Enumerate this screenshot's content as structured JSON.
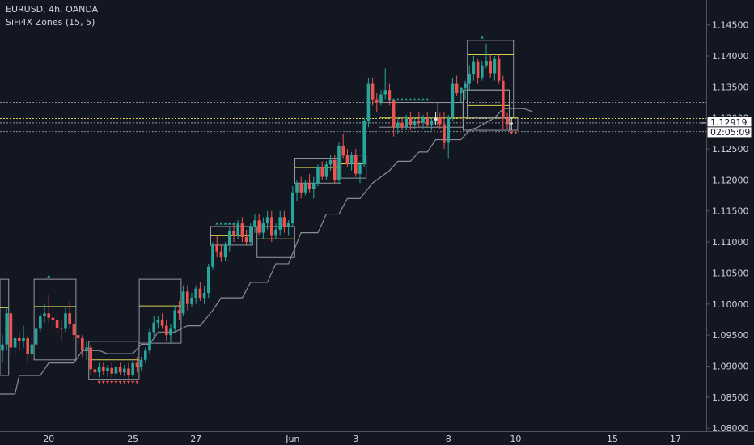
{
  "header": {
    "symbol_line": "EURUSD, 4h, OANDA",
    "indicator_line": "SiFi4X Zones (15, 5)"
  },
  "colors": {
    "background": "#131722",
    "up_candle": "#26a69a",
    "down_candle": "#ef5350",
    "doji_candle": "#e9eaec",
    "zone_box": "#9598a1",
    "mid_line": "#d4d050",
    "trail_line": "#8a8d94",
    "grid_dotted": "#8a8d94",
    "text": "#d1d4dc",
    "markers_up": "#26a69a",
    "markers_down": "#ef5350"
  },
  "chart_data": {
    "type": "candlestick",
    "y_axis": {
      "ticks": [
        "1.14500",
        "1.14000",
        "1.13500",
        "1.13000",
        "1.12500",
        "1.12000",
        "1.11500",
        "1.11000",
        "1.10500",
        "1.10000",
        "1.09500",
        "1.09000",
        "1.08500",
        "1.08000"
      ],
      "ylim": [
        1.0795,
        1.149
      ]
    },
    "x_axis": {
      "ticks": [
        {
          "label": "20",
          "bar": 11
        },
        {
          "label": "25",
          "bar": 31
        },
        {
          "label": "27",
          "bar": 46
        },
        {
          "label": "Jun",
          "bar": 69
        },
        {
          "label": "3",
          "bar": 84
        },
        {
          "label": "8",
          "bar": 106
        },
        {
          "label": "10",
          "bar": 122
        },
        {
          "label": "15",
          "bar": 145
        },
        {
          "label": "17",
          "bar": 160
        }
      ]
    },
    "last_price": "1.12919",
    "countdown": "02:05:09",
    "candles": [
      [
        1.0925,
        1.095,
        1.0905,
        1.0935
      ],
      [
        1.0935,
        1.0995,
        1.0925,
        1.0985
      ],
      [
        1.0985,
        1.099,
        1.092,
        1.093
      ],
      [
        1.093,
        1.095,
        1.0915,
        1.0945
      ],
      [
        1.0945,
        1.0955,
        1.0925,
        1.094
      ],
      [
        1.094,
        1.0965,
        1.093,
        1.0945
      ],
      [
        1.0945,
        1.095,
        1.0905,
        1.092
      ],
      [
        1.092,
        1.0945,
        1.091,
        1.0935
      ],
      [
        1.0935,
        1.097,
        1.093,
        1.096
      ],
      [
        1.096,
        1.0985,
        1.0955,
        1.098
      ],
      [
        1.098,
        1.1,
        1.097,
        1.0985
      ],
      [
        1.0985,
        1.1015,
        1.097,
        1.0978
      ],
      [
        1.0978,
        1.099,
        1.096,
        1.0975
      ],
      [
        1.0975,
        1.0985,
        1.0955,
        1.0962
      ],
      [
        1.0962,
        1.0975,
        1.094,
        1.096
      ],
      [
        1.096,
        1.0995,
        1.0955,
        1.0985
      ],
      [
        1.0985,
        1.1005,
        1.096,
        1.0968
      ],
      [
        1.0968,
        1.0975,
        1.094,
        1.095
      ],
      [
        1.095,
        1.096,
        1.0935,
        1.0945
      ],
      [
        1.0945,
        1.095,
        1.0915,
        1.0925
      ],
      [
        1.0925,
        1.094,
        1.091,
        1.093
      ],
      [
        1.093,
        1.0935,
        1.0885,
        1.0895
      ],
      [
        1.0895,
        1.0905,
        1.088,
        1.089
      ],
      [
        1.089,
        1.0905,
        1.0882,
        1.0898
      ],
      [
        1.0898,
        1.0905,
        1.0885,
        1.0892
      ],
      [
        1.0892,
        1.0902,
        1.0883,
        1.0897
      ],
      [
        1.0897,
        1.0905,
        1.0882,
        1.0888
      ],
      [
        1.0888,
        1.09,
        1.088,
        1.0898
      ],
      [
        1.0898,
        1.0905,
        1.0885,
        1.089
      ],
      [
        1.089,
        1.0902,
        1.0884,
        1.0896
      ],
      [
        1.0896,
        1.0905,
        1.088,
        1.0885
      ],
      [
        1.0885,
        1.091,
        1.0882,
        1.0905
      ],
      [
        1.0905,
        1.0915,
        1.089,
        1.0898
      ],
      [
        1.0898,
        1.0915,
        1.0893,
        1.091
      ],
      [
        1.091,
        1.093,
        1.0905,
        1.0925
      ],
      [
        1.0925,
        1.096,
        1.092,
        1.0955
      ],
      [
        1.0955,
        1.098,
        1.0945,
        1.097
      ],
      [
        1.097,
        1.098,
        1.096,
        1.0975
      ],
      [
        1.0975,
        1.0985,
        1.096,
        1.0965
      ],
      [
        1.0965,
        1.0975,
        1.094,
        1.095
      ],
      [
        1.095,
        1.0968,
        1.0938,
        1.096
      ],
      [
        1.096,
        1.0998,
        1.0955,
        1.099
      ],
      [
        1.099,
        1.1005,
        1.0975,
        1.0985
      ],
      [
        1.0985,
        1.103,
        1.098,
        1.102
      ],
      [
        1.102,
        1.103,
        1.099,
        1.1
      ],
      [
        1.1,
        1.1018,
        1.0995,
        1.101
      ],
      [
        1.101,
        1.103,
        1.1,
        1.1025
      ],
      [
        1.1025,
        1.1035,
        1.1005,
        1.101
      ],
      [
        1.101,
        1.103,
        1.1,
        1.1018
      ],
      [
        1.1018,
        1.1065,
        1.101,
        1.106
      ],
      [
        1.106,
        1.11,
        1.1055,
        1.1095
      ],
      [
        1.1095,
        1.111,
        1.1075,
        1.1085
      ],
      [
        1.1085,
        1.1095,
        1.1068,
        1.1075
      ],
      [
        1.1075,
        1.11,
        1.107,
        1.1095
      ],
      [
        1.1095,
        1.1125,
        1.1085,
        1.1118
      ],
      [
        1.1118,
        1.113,
        1.11,
        1.111
      ],
      [
        1.111,
        1.1135,
        1.1105,
        1.113
      ],
      [
        1.113,
        1.114,
        1.11,
        1.1108
      ],
      [
        1.1108,
        1.112,
        1.1095,
        1.11
      ],
      [
        1.11,
        1.113,
        1.1095,
        1.1125
      ],
      [
        1.1125,
        1.1145,
        1.1115,
        1.1135
      ],
      [
        1.1135,
        1.1145,
        1.111,
        1.1115
      ],
      [
        1.1115,
        1.114,
        1.1105,
        1.113
      ],
      [
        1.113,
        1.115,
        1.112,
        1.114
      ],
      [
        1.114,
        1.115,
        1.11,
        1.111
      ],
      [
        1.111,
        1.113,
        1.1105,
        1.112
      ],
      [
        1.112,
        1.115,
        1.111,
        1.114
      ],
      [
        1.114,
        1.115,
        1.1115,
        1.1125
      ],
      [
        1.1125,
        1.1135,
        1.111,
        1.113
      ],
      [
        1.113,
        1.119,
        1.1125,
        1.118
      ],
      [
        1.118,
        1.12,
        1.1165,
        1.1195
      ],
      [
        1.1195,
        1.1205,
        1.117,
        1.118
      ],
      [
        1.118,
        1.12,
        1.1175,
        1.1195
      ],
      [
        1.1195,
        1.121,
        1.118,
        1.1185
      ],
      [
        1.1185,
        1.1205,
        1.117,
        1.1195
      ],
      [
        1.1195,
        1.1225,
        1.119,
        1.122
      ],
      [
        1.122,
        1.123,
        1.12,
        1.1205
      ],
      [
        1.1205,
        1.123,
        1.12,
        1.1225
      ],
      [
        1.1225,
        1.124,
        1.1215,
        1.1232
      ],
      [
        1.1232,
        1.124,
        1.1195,
        1.12
      ],
      [
        1.12,
        1.126,
        1.1195,
        1.1255
      ],
      [
        1.1255,
        1.1275,
        1.1235,
        1.124
      ],
      [
        1.124,
        1.125,
        1.122,
        1.1225
      ],
      [
        1.1225,
        1.1245,
        1.1215,
        1.124
      ],
      [
        1.124,
        1.125,
        1.1205,
        1.121
      ],
      [
        1.121,
        1.123,
        1.1195,
        1.1225
      ],
      [
        1.1225,
        1.13,
        1.122,
        1.1295
      ],
      [
        1.1295,
        1.1365,
        1.1285,
        1.1355
      ],
      [
        1.1355,
        1.1365,
        1.132,
        1.133
      ],
      [
        1.133,
        1.134,
        1.131,
        1.1325
      ],
      [
        1.1325,
        1.1345,
        1.132,
        1.1338
      ],
      [
        1.1338,
        1.138,
        1.133,
        1.1345
      ],
      [
        1.1345,
        1.1355,
        1.132,
        1.1328
      ],
      [
        1.1328,
        1.133,
        1.127,
        1.1285
      ],
      [
        1.1285,
        1.13,
        1.1275,
        1.1292
      ],
      [
        1.1292,
        1.13,
        1.128,
        1.1285
      ],
      [
        1.1285,
        1.1305,
        1.128,
        1.13
      ],
      [
        1.13,
        1.131,
        1.128,
        1.1288
      ],
      [
        1.1288,
        1.1302,
        1.1282,
        1.1295
      ],
      [
        1.1295,
        1.131,
        1.1285,
        1.1292
      ],
      [
        1.1292,
        1.1305,
        1.1283,
        1.13
      ],
      [
        1.13,
        1.131,
        1.1285,
        1.1288
      ],
      [
        1.1288,
        1.1302,
        1.128,
        1.1296
      ],
      [
        1.1296,
        1.131,
        1.1288,
        1.13
      ],
      [
        1.13,
        1.1308,
        1.1282,
        1.129
      ],
      [
        1.129,
        1.131,
        1.125,
        1.126
      ],
      [
        1.126,
        1.1305,
        1.1235,
        1.13
      ],
      [
        1.13,
        1.1365,
        1.1295,
        1.1355
      ],
      [
        1.1355,
        1.1368,
        1.1335,
        1.134
      ],
      [
        1.134,
        1.135,
        1.1325,
        1.1348
      ],
      [
        1.1348,
        1.136,
        1.133,
        1.1355
      ],
      [
        1.1355,
        1.1385,
        1.1345,
        1.137
      ],
      [
        1.137,
        1.14,
        1.136,
        1.139
      ],
      [
        1.139,
        1.1395,
        1.1355,
        1.1365
      ],
      [
        1.1365,
        1.1392,
        1.136,
        1.1385
      ],
      [
        1.1385,
        1.142,
        1.138,
        1.1392
      ],
      [
        1.1392,
        1.1402,
        1.1365,
        1.1372
      ],
      [
        1.1372,
        1.14,
        1.136,
        1.1395
      ],
      [
        1.1395,
        1.1402,
        1.1355,
        1.136
      ],
      [
        1.136,
        1.1368,
        1.128,
        1.13
      ],
      [
        1.13,
        1.1308,
        1.1282,
        1.129
      ],
      [
        1.129,
        1.1302,
        1.128,
        1.1292
      ]
    ],
    "boxes": [
      {
        "x0": -1,
        "x1": 1,
        "top": 1.104,
        "bot": 1.0885,
        "mid": 1.0994
      },
      {
        "x0": 8,
        "x1": 17,
        "top": 1.104,
        "bot": 1.091,
        "mid": 1.0996
      },
      {
        "x0": 21,
        "x1": 32,
        "top": 1.094,
        "bot": 1.0878,
        "mid": 1.091
      },
      {
        "x0": 33,
        "x1": 42,
        "top": 1.104,
        "bot": 1.0937,
        "mid": 1.0997
      },
      {
        "x0": 50,
        "x1": 59,
        "top": 1.1125,
        "bot": 1.1095,
        "mid": 1.111
      },
      {
        "x0": 61,
        "x1": 69,
        "top": 1.1125,
        "bot": 1.1075,
        "mid": 1.1105
      },
      {
        "x0": 70,
        "x1": 80,
        "top": 1.1235,
        "bot": 1.1195,
        "mid": 1.122
      },
      {
        "x0": 81,
        "x1": 86,
        "top": 1.124,
        "bot": 1.1203,
        "mid": 1.1226
      },
      {
        "x0": 90,
        "x1": 103,
        "top": 1.1325,
        "bot": 1.1285,
        "mid": 1.13
      },
      {
        "x0": 104,
        "x1": 109,
        "top": 1.1325,
        "bot": 1.1285,
        "mid": 1.13
      },
      {
        "x0": 110,
        "x1": 120,
        "top": 1.1345,
        "bot": 1.128,
        "mid": 1.13
      },
      {
        "x0": 111,
        "x1": 120,
        "top": 1.1345,
        "bot": 1.13,
        "mid": 1.132
      },
      {
        "x0": 111,
        "x1": 121,
        "top": 1.1425,
        "bot": 1.13,
        "mid": 1.1402
      },
      {
        "x0": 121,
        "x1": 122,
        "top": 1.13,
        "bot": 1.128,
        "mid": 1.13
      }
    ],
    "trail": [
      [
        0,
        1.0855
      ],
      [
        3,
        1.0855
      ],
      [
        4,
        1.0885
      ],
      [
        9,
        1.0885
      ],
      [
        11,
        1.0905
      ],
      [
        17,
        1.0905
      ],
      [
        19,
        1.0925
      ],
      [
        23,
        1.0925
      ],
      [
        25,
        1.092
      ],
      [
        31,
        1.092
      ],
      [
        33,
        1.0935
      ],
      [
        35,
        1.0935
      ],
      [
        37,
        1.0955
      ],
      [
        41,
        1.0955
      ],
      [
        44,
        1.0965
      ],
      [
        47,
        1.0965
      ],
      [
        50,
        1.099
      ],
      [
        52,
        1.101
      ],
      [
        57,
        1.101
      ],
      [
        59,
        1.1035
      ],
      [
        63,
        1.1035
      ],
      [
        65,
        1.1065
      ],
      [
        68,
        1.1065
      ],
      [
        71,
        1.1115
      ],
      [
        75,
        1.1115
      ],
      [
        77,
        1.1145
      ],
      [
        80,
        1.1145
      ],
      [
        82,
        1.117
      ],
      [
        85,
        1.117
      ],
      [
        88,
        1.1195
      ],
      [
        92,
        1.1215
      ],
      [
        94,
        1.123
      ],
      [
        97,
        1.123
      ],
      [
        99,
        1.1245
      ],
      [
        101,
        1.1245
      ],
      [
        103,
        1.1265
      ],
      [
        109,
        1.1265
      ],
      [
        111,
        1.128
      ],
      [
        113,
        1.1285
      ],
      [
        117,
        1.13
      ],
      [
        119,
        1.1315
      ],
      [
        124,
        1.1315
      ],
      [
        126,
        1.131
      ]
    ],
    "h_lines": [
      {
        "price": 1.1325,
        "color": "#8a8d94",
        "style": "dotted"
      },
      {
        "price": 1.1299,
        "color": "#d4d050",
        "style": "dotted"
      },
      {
        "price": 1.1292,
        "color": "#9598a1",
        "style": "dotted"
      },
      {
        "price": 1.1278,
        "color": "#8a8d94",
        "style": "dotted"
      }
    ],
    "markers": [
      {
        "bar": 11,
        "price": 1.1045,
        "kind": "up"
      },
      {
        "bar": 51,
        "price": 1.113,
        "kind": "up"
      },
      {
        "bar": 52,
        "price": 1.113,
        "kind": "up"
      },
      {
        "bar": 53,
        "price": 1.113,
        "kind": "up"
      },
      {
        "bar": 54,
        "price": 1.113,
        "kind": "up"
      },
      {
        "bar": 55,
        "price": 1.113,
        "kind": "up"
      },
      {
        "bar": 92,
        "price": 1.133,
        "kind": "up"
      },
      {
        "bar": 93,
        "price": 1.133,
        "kind": "up"
      },
      {
        "bar": 94,
        "price": 1.133,
        "kind": "up"
      },
      {
        "bar": 95,
        "price": 1.133,
        "kind": "up"
      },
      {
        "bar": 96,
        "price": 1.133,
        "kind": "up"
      },
      {
        "bar": 97,
        "price": 1.133,
        "kind": "up"
      },
      {
        "bar": 98,
        "price": 1.133,
        "kind": "up"
      },
      {
        "bar": 99,
        "price": 1.133,
        "kind": "up"
      },
      {
        "bar": 100,
        "price": 1.133,
        "kind": "up"
      },
      {
        "bar": 101,
        "price": 1.133,
        "kind": "up"
      },
      {
        "bar": 114,
        "price": 1.143,
        "kind": "up"
      },
      {
        "bar": 23,
        "price": 1.0874,
        "kind": "down"
      },
      {
        "bar": 24,
        "price": 1.0874,
        "kind": "down"
      },
      {
        "bar": 25,
        "price": 1.0874,
        "kind": "down"
      },
      {
        "bar": 26,
        "price": 1.0874,
        "kind": "down"
      },
      {
        "bar": 27,
        "price": 1.0874,
        "kind": "down"
      },
      {
        "bar": 28,
        "price": 1.0874,
        "kind": "down"
      },
      {
        "bar": 29,
        "price": 1.0874,
        "kind": "down"
      },
      {
        "bar": 30,
        "price": 1.0874,
        "kind": "down"
      },
      {
        "bar": 31,
        "price": 1.0874,
        "kind": "down"
      },
      {
        "bar": 32,
        "price": 1.0874,
        "kind": "down"
      },
      {
        "bar": 121,
        "price": 1.1276,
        "kind": "down"
      },
      {
        "bar": 122,
        "price": 1.1276,
        "kind": "down"
      }
    ]
  }
}
